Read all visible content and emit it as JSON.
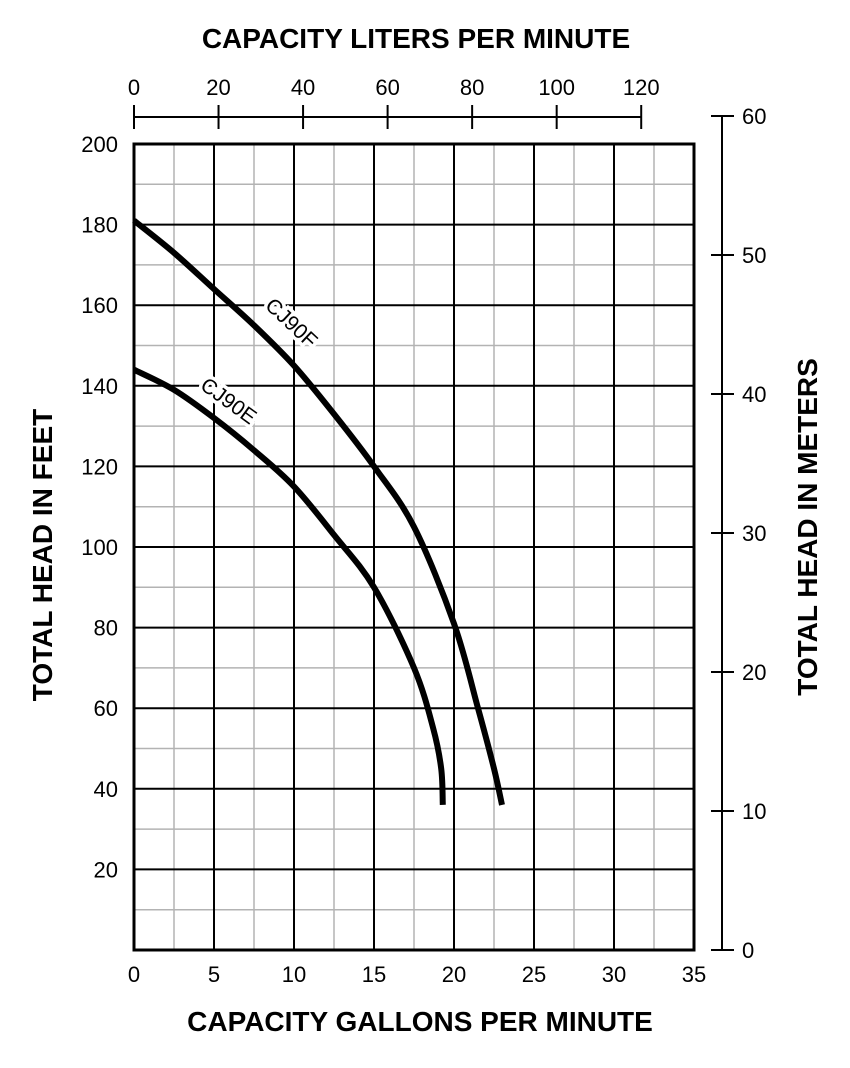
{
  "chart_data": {
    "type": "line",
    "title": "",
    "top_axis_title": "CAPACITY LITERS PER MINUTE",
    "xlabel": "CAPACITY GALLONS PER MINUTE",
    "ylabel": "TOTAL HEAD IN FEET",
    "ylabel_right": "TOTAL HEAD IN METERS",
    "xlim": [
      0,
      35
    ],
    "ylim": [
      0,
      200
    ],
    "x_ticks": [
      "0",
      "5",
      "10",
      "15",
      "20",
      "25",
      "30",
      "35"
    ],
    "y_ticks": [
      "20",
      "40",
      "60",
      "80",
      "100",
      "120",
      "140",
      "160",
      "180",
      "200"
    ],
    "top_axis": {
      "range": [
        0,
        132.5
      ],
      "ticks": [
        "0",
        "20",
        "40",
        "60",
        "80",
        "100",
        "120"
      ]
    },
    "right_axis": {
      "range": [
        0,
        60
      ],
      "ticks": [
        "0",
        "10",
        "20",
        "30",
        "40",
        "50",
        "60"
      ]
    },
    "grid": {
      "major": true,
      "minor": true,
      "major_x_step": 5,
      "minor_x_step": 2.5,
      "major_y_step": 20,
      "minor_y_step": 10
    },
    "legend": "inline curve labels",
    "series": [
      {
        "name": "CJ90F",
        "x": [
          0,
          2.5,
          5,
          7.5,
          10,
          12.5,
          15,
          17.5,
          20,
          21.5,
          22.5,
          23
        ],
        "y": [
          181,
          173,
          164,
          155,
          145,
          133,
          120,
          105,
          81,
          60,
          45,
          36
        ]
      },
      {
        "name": "CJ90E",
        "x": [
          0,
          2.5,
          5,
          7.5,
          10,
          12.5,
          15,
          17.5,
          18.7,
          19.2,
          19.3
        ],
        "y": [
          144,
          139,
          132,
          124,
          115,
          103,
          90,
          70,
          55,
          45,
          36
        ]
      }
    ]
  },
  "labels": {
    "top_axis_title": "CAPACITY LITERS PER MINUTE",
    "bottom_axis_title": "CAPACITY GALLONS PER MINUTE",
    "left_axis_title": "TOTAL HEAD IN FEET",
    "right_axis_title": "TOTAL HEAD IN METERS",
    "curve_f": "CJ90F",
    "curve_e": "CJ90E"
  },
  "colors": {
    "line": "#000000",
    "minor_grid": "#b3b3b3",
    "major_grid": "#000000",
    "background": "#ffffff"
  }
}
